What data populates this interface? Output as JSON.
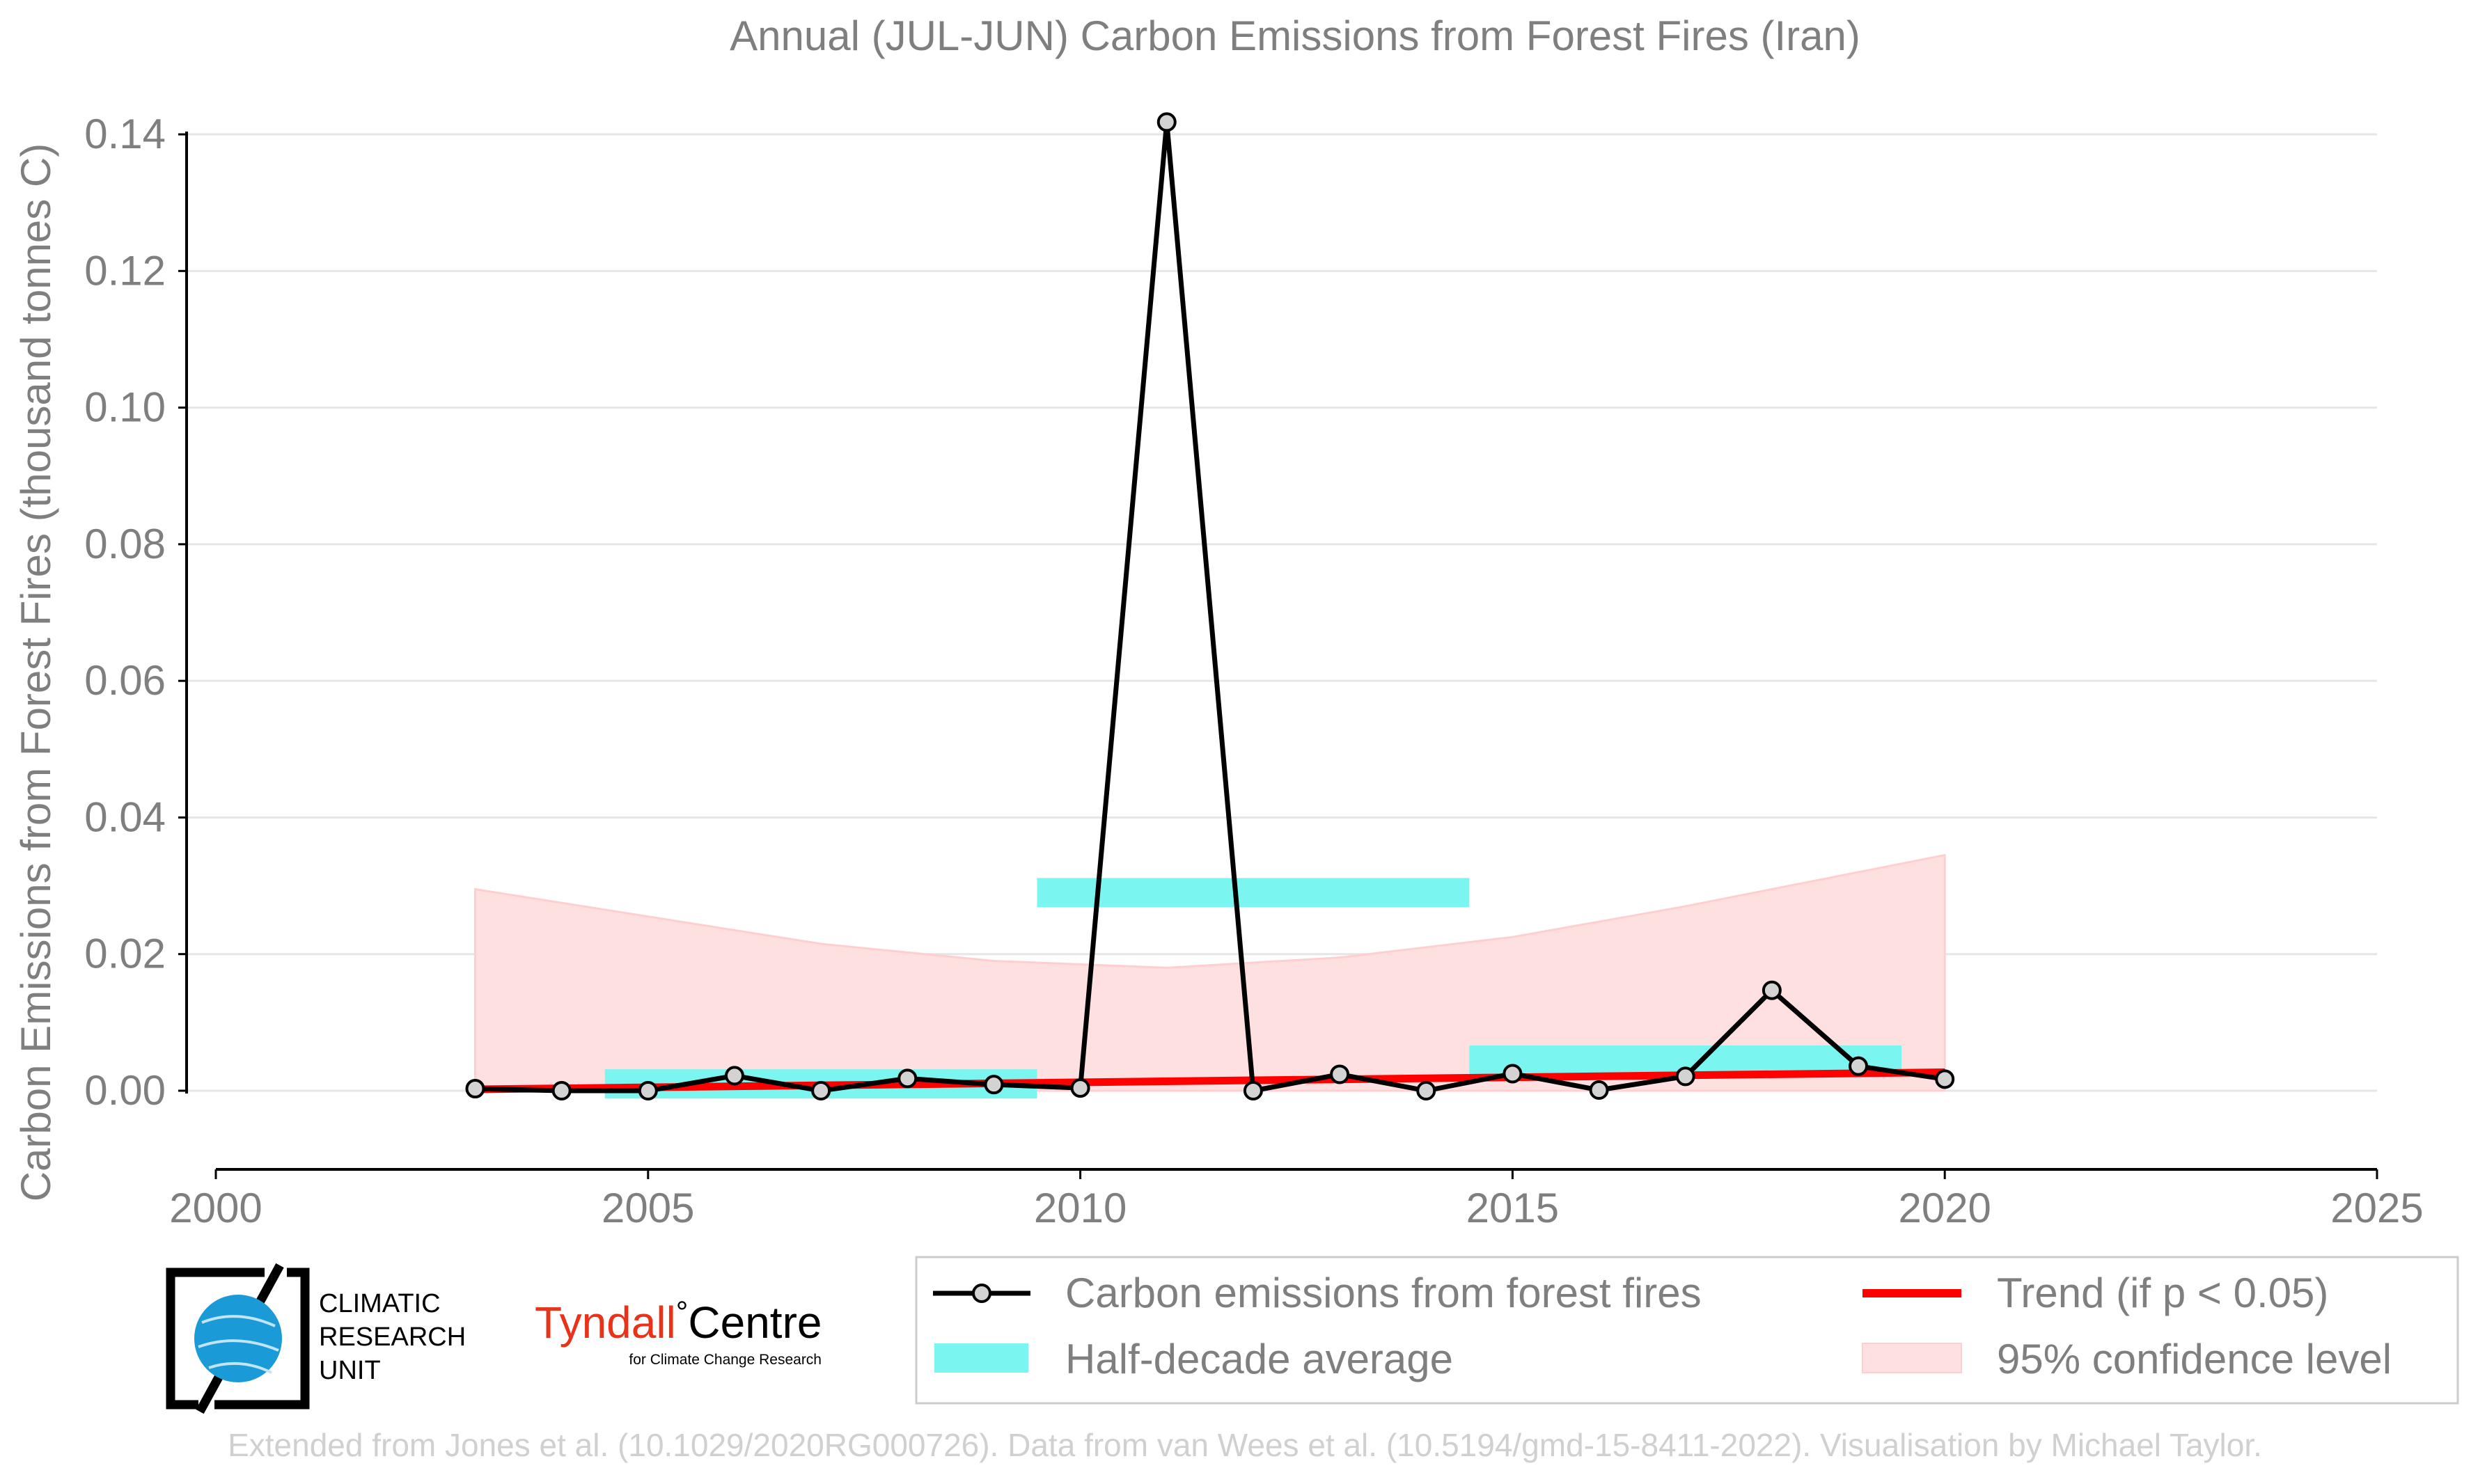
{
  "chart_data": {
    "type": "line",
    "title": "Annual (JUL-JUN) Carbon Emissions from Forest Fires (Iran)",
    "xlabel": "",
    "ylabel": "Carbon Emissions from Forest Fires (thousand tonnes C)",
    "xlim": [
      2000,
      2025
    ],
    "ylim": [
      -0.012,
      0.145
    ],
    "x_ticks": [
      2000,
      2005,
      2010,
      2015,
      2020,
      2025
    ],
    "x_tick_labels": [
      "2000",
      "2005",
      "2010",
      "2015",
      "2020",
      "2025"
    ],
    "y_ticks": [
      0.0,
      0.02,
      0.04,
      0.06,
      0.08,
      0.1,
      0.12,
      0.14
    ],
    "y_tick_labels": [
      "0.00",
      "0.02",
      "0.04",
      "0.06",
      "0.08",
      "0.10",
      "0.12",
      "0.14"
    ],
    "grid": "horizontal",
    "legend_position": "bottom-right",
    "series": [
      {
        "name": "Carbon emissions from forest fires",
        "x": [
          2003,
          2004,
          2005,
          2006,
          2007,
          2008,
          2009,
          2010,
          2011,
          2012,
          2013,
          2014,
          2015,
          2016,
          2017,
          2018,
          2019,
          2020
        ],
        "values": [
          0.0003,
          0.0,
          0.0,
          0.0022,
          0.0,
          0.0018,
          0.0009,
          0.0004,
          0.1418,
          0.0,
          0.0024,
          0.0,
          0.0025,
          0.0001,
          0.0021,
          0.0147,
          0.0036,
          0.0017
        ],
        "color": "#000000",
        "marker_fill": "#d3d3d3"
      }
    ],
    "half_decade_average": {
      "name": "Half-decade average",
      "color": "#7af5f0",
      "segments": [
        {
          "x_start": 2004.5,
          "x_end": 2009.5,
          "value": 0.001
        },
        {
          "x_start": 2009.5,
          "x_end": 2014.5,
          "value": 0.029
        },
        {
          "x_start": 2014.5,
          "x_end": 2019.5,
          "value": 0.0045
        }
      ]
    },
    "trend": {
      "name": "Trend (if p < 0.05)",
      "color": "#ff0000",
      "x": [
        2003,
        2020
      ],
      "values": [
        0.0002,
        0.0027
      ]
    },
    "confidence_band": {
      "name": "95% confidence level",
      "color": "#ffe0e0",
      "x": [
        2003,
        2005,
        2007,
        2009,
        2011,
        2013,
        2015,
        2017,
        2020
      ],
      "upper": [
        0.0295,
        0.0255,
        0.0215,
        0.019,
        0.018,
        0.0195,
        0.0225,
        0.027,
        0.0345
      ],
      "lower": [
        0.0,
        0.0,
        0.0,
        0.0,
        0.0,
        0.0,
        0.0,
        0.0,
        0.0
      ]
    }
  },
  "logos": {
    "cru_line1": "CLIMATIC",
    "cru_line2": "RESEARCH",
    "cru_line3": "UNIT",
    "tyndall_main": "Tyndall",
    "tyndall_degree": "°",
    "tyndall_centre": "Centre",
    "tyndall_sub": "for Climate Change Research"
  },
  "footer": {
    "credit": "Extended from Jones et al. (10.1029/2020RG000726). Data from van Wees et al. (10.5194/gmd-15-8411-2022). Visualisation by Michael Taylor."
  },
  "colors": {
    "text_gray": "#7f7f7f",
    "grid": "#e6e6e6",
    "footer_gray": "#d0d0d0",
    "tyndall_red": "#e8321a",
    "cru_blue": "#1a9ad6"
  }
}
